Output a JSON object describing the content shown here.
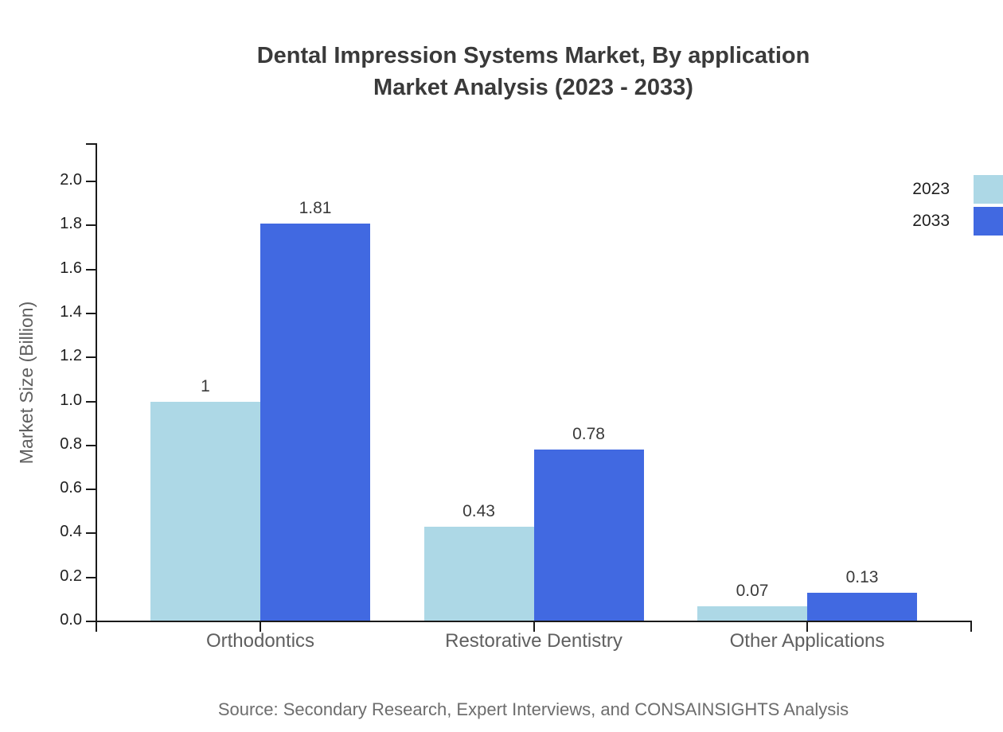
{
  "title": {
    "line1": "Dental Impression Systems Market, By application",
    "line2": "Market Analysis (2023 - 2033)"
  },
  "source": "Source: Secondary Research, Expert Interviews, and CONSAINSIGHTS Analysis",
  "chart_data": {
    "type": "bar",
    "categories": [
      "Orthodontics",
      "Restorative Dentistry",
      "Other Applications"
    ],
    "series": [
      {
        "name": "2023",
        "color": "#ADD8E6",
        "values": [
          1,
          0.43,
          0.07
        ],
        "labels": [
          "1",
          "0.43",
          "0.07"
        ]
      },
      {
        "name": "2033",
        "color": "#4169E1",
        "values": [
          1.81,
          0.78,
          0.13
        ],
        "labels": [
          "1.81",
          "0.78",
          "0.13"
        ]
      }
    ],
    "title": "Dental Impression Systems Market, By application Market Analysis (2023 - 2033)",
    "xlabel": "",
    "ylabel": "Market Size (Billion)",
    "ylim": [
      0,
      2.0
    ],
    "yticks": [
      0.0,
      0.2,
      0.4,
      0.6,
      0.8,
      1.0,
      1.2,
      1.4,
      1.6,
      1.8,
      2.0
    ],
    "grid": false,
    "legend_position": "top-right",
    "axis_color": "#1a1a1a"
  }
}
